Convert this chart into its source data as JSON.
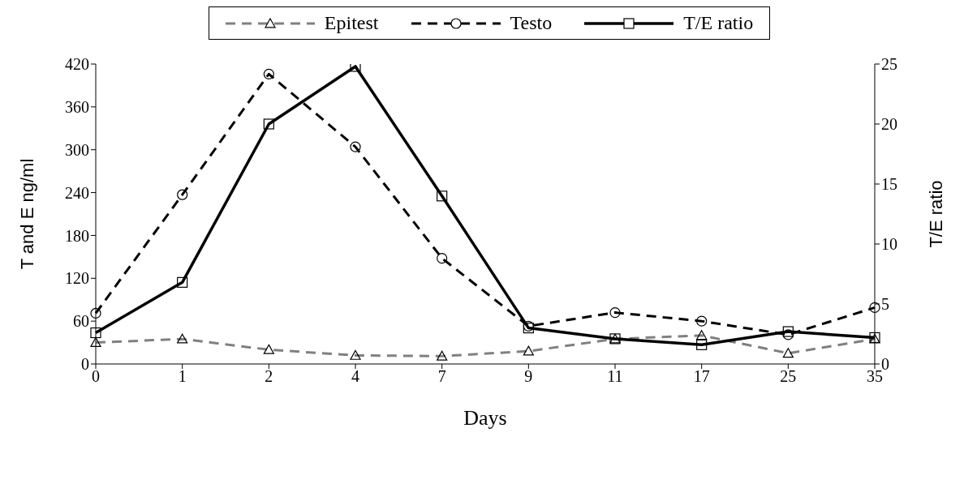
{
  "chart_data": {
    "type": "line",
    "xlabel": "Days",
    "ylabel": "T and E ng/ml",
    "y2label": "T/E ratio",
    "categories": [
      "0",
      "1",
      "2",
      "4",
      "7",
      "9",
      "11",
      "17",
      "25",
      "35"
    ],
    "series": [
      {
        "name": "Epitest",
        "color": "#808080",
        "marker": "triangle",
        "line_style": "dashed",
        "values": [
          30,
          35,
          20,
          12,
          11,
          18,
          35,
          40,
          15,
          35
        ]
      },
      {
        "name": "Testo",
        "color": "#000000",
        "marker": "circle",
        "line_style": "dashed",
        "values": [
          71,
          237,
          406,
          304,
          148,
          53,
          72,
          60,
          41,
          79
        ]
      },
      {
        "name": "T/E ratio",
        "color": "#000000",
        "marker": "square",
        "line_style": "solid",
        "axis": "y2",
        "values": [
          2.6,
          6.8,
          20,
          24.8,
          14,
          3,
          2.1,
          1.6,
          2.7,
          2.2
        ]
      }
    ],
    "ylim": [
      0,
      420
    ],
    "yticks": [
      0,
      60,
      120,
      180,
      240,
      300,
      360,
      420
    ],
    "y2lim": [
      0,
      25
    ],
    "y2ticks": [
      0,
      5,
      10,
      15,
      20,
      25
    ],
    "legend": "top"
  }
}
